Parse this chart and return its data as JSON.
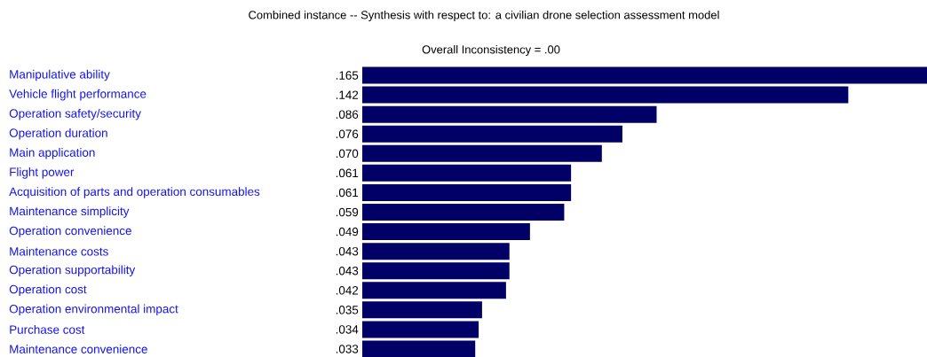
{
  "chart_data": {
    "type": "bar",
    "orientation": "horizontal",
    "title": "Combined instance -- Synthesis with respect to: a civilian drone selection assessment model",
    "subtitle": "Overall Inconsistency = .00",
    "categories": [
      "Manipulative ability",
      "Vehicle flight performance",
      "Operation safety/security",
      "Operation duration",
      "Main application",
      "Flight power",
      "Acquisition of parts and operation consumables",
      "Maintenance simplicity",
      "Operation convenience",
      "Maintenance costs",
      "Operation supportability",
      "Operation cost",
      "Operation environmental impact",
      "Purchase cost",
      "Maintenance convenience"
    ],
    "values": [
      0.165,
      0.142,
      0.086,
      0.076,
      0.07,
      0.061,
      0.061,
      0.059,
      0.049,
      0.043,
      0.043,
      0.042,
      0.035,
      0.034,
      0.033
    ],
    "value_labels": [
      ".165",
      ".142",
      ".086",
      ".076",
      ".070",
      ".061",
      ".061",
      ".059",
      ".049",
      ".043",
      ".043",
      ".042",
      ".035",
      ".034",
      ".033"
    ],
    "color": "#000066"
  }
}
